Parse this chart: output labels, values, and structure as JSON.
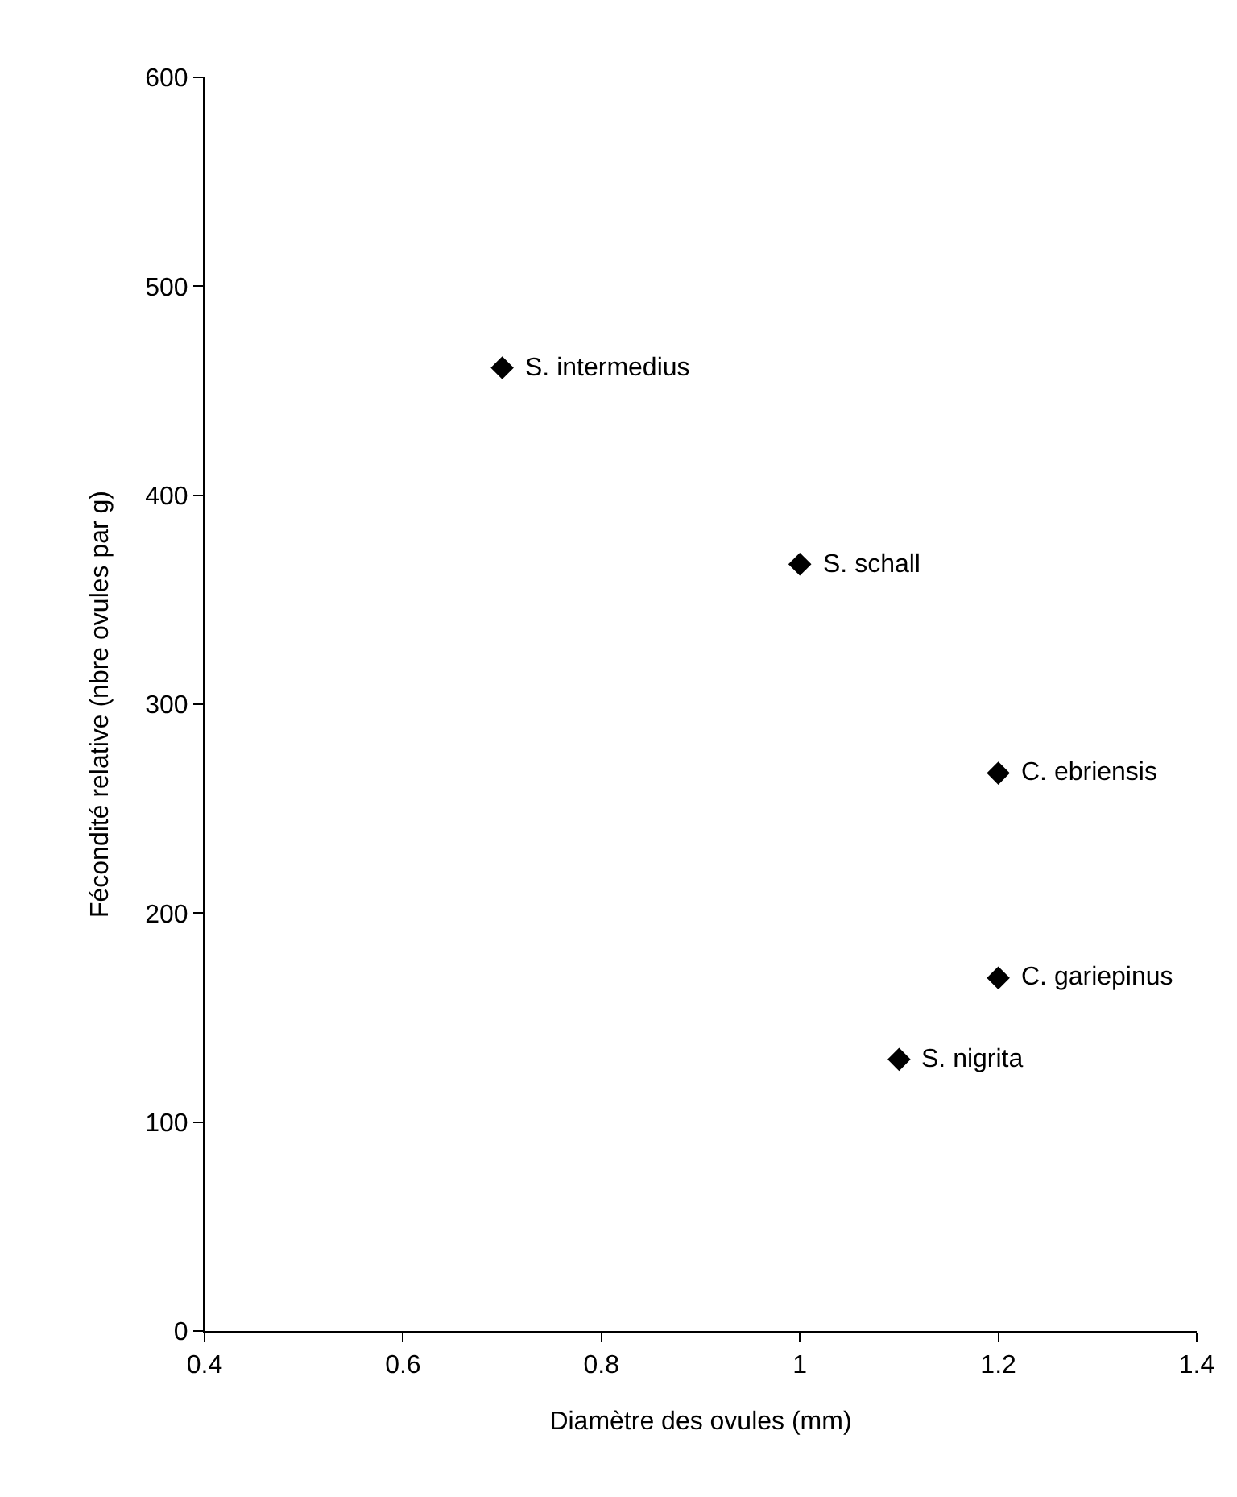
{
  "chart_data": {
    "type": "scatter",
    "xlabel": "Diamètre des ovules (mm)",
    "ylabel": "Fécondité relative (nbre ovules par g)",
    "x": [
      0.7,
      1.0,
      1.2,
      1.2,
      1.1
    ],
    "series": [
      {
        "color": "#000000",
        "values": [
          461,
          367,
          267,
          169,
          130
        ]
      }
    ],
    "marker": "diamond",
    "grid": false,
    "xlim": [
      0.4,
      1.4
    ],
    "xticks": [
      0.4,
      0.6,
      0.8,
      1,
      1.2,
      1.4
    ],
    "ylim": [
      0,
      600
    ],
    "yticks": [
      0,
      100,
      200,
      300,
      400,
      500,
      600
    ],
    "annotations": [
      {
        "text": "S. intermedius",
        "x": 0.7,
        "y": 461
      },
      {
        "text": "S. schall",
        "x": 1.0,
        "y": 367
      },
      {
        "text": "C. ebriensis",
        "x": 1.2,
        "y": 267
      },
      {
        "text": "C. gariepinus",
        "x": 1.2,
        "y": 169
      },
      {
        "text": "S. nigrita",
        "x": 1.1,
        "y": 130
      }
    ]
  }
}
